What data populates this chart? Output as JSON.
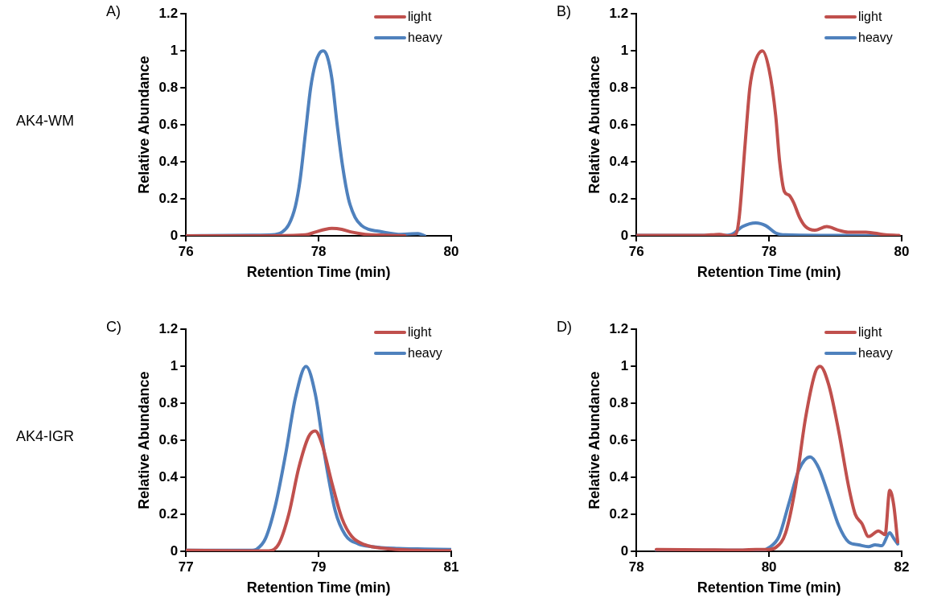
{
  "chart_data": [
    {
      "type": "line",
      "title": "A)",
      "annotations": [
        "AK4-WM"
      ],
      "xlabel": "Retention Time (min)",
      "ylabel": "Relative Abundance",
      "xlim": [
        76,
        80
      ],
      "xticks": [
        76,
        78,
        80
      ],
      "ylim": [
        0,
        1.2
      ],
      "yticks": [
        0,
        0.2,
        0.4,
        0.6,
        0.8,
        1,
        1.2
      ],
      "legend": "top right",
      "line_style": "solid",
      "marker": "none",
      "series": [
        {
          "name": "light",
          "color": "#c0504d",
          "x": [
            76,
            77.2,
            77.8,
            77.95,
            78.1,
            78.2,
            78.35,
            78.5,
            78.7,
            79,
            79.3
          ],
          "values": [
            0,
            0,
            0.005,
            0.02,
            0.035,
            0.04,
            0.035,
            0.02,
            0.008,
            0.003,
            0
          ]
        },
        {
          "name": "heavy",
          "color": "#4f81bd",
          "x": [
            76,
            77,
            77.3,
            77.45,
            77.55,
            77.65,
            77.72,
            77.8,
            77.88,
            77.95,
            78.02,
            78.07,
            78.13,
            78.2,
            78.28,
            78.36,
            78.45,
            78.55,
            78.65,
            78.75,
            78.9,
            79.05,
            79.2,
            79.35,
            79.5,
            79.6
          ],
          "values": [
            0,
            0.003,
            0.005,
            0.02,
            0.06,
            0.16,
            0.3,
            0.55,
            0.8,
            0.93,
            0.99,
            1,
            0.97,
            0.85,
            0.6,
            0.38,
            0.2,
            0.1,
            0.055,
            0.035,
            0.025,
            0.015,
            0.008,
            0.01,
            0.012,
            0
          ]
        }
      ]
    },
    {
      "type": "line",
      "title": "B)",
      "xlabel": "Retention Time (min)",
      "ylabel": "Relative Abundance",
      "xlim": [
        76,
        80
      ],
      "xticks": [
        76,
        78,
        80
      ],
      "ylim": [
        0,
        1.2
      ],
      "yticks": [
        0,
        0.2,
        0.4,
        0.6,
        0.8,
        1,
        1.2
      ],
      "legend": "top right",
      "line_style": "solid",
      "marker": "none",
      "series": [
        {
          "name": "light",
          "color": "#c0504d",
          "x": [
            76,
            77,
            77.25,
            77.4,
            77.5,
            77.55,
            77.64,
            77.71,
            77.78,
            77.9,
            78,
            78.1,
            78.16,
            78.23,
            78.3,
            78.37,
            78.46,
            78.55,
            78.69,
            78.87,
            79.05,
            79.19,
            79.46,
            79.73,
            79.96
          ],
          "values": [
            0.002,
            0.002,
            0.008,
            0,
            0.01,
            0.1,
            0.5,
            0.8,
            0.93,
            1,
            0.9,
            0.65,
            0.4,
            0.24,
            0.22,
            0.18,
            0.1,
            0.05,
            0.03,
            0.05,
            0.03,
            0.02,
            0.02,
            0.007,
            0.002
          ]
        },
        {
          "name": "heavy",
          "color": "#4f81bd",
          "x": [
            76,
            77.3,
            77.45,
            77.6,
            77.8,
            77.95,
            78.1,
            78.25,
            79,
            79.9
          ],
          "values": [
            0.002,
            0.002,
            0.01,
            0.05,
            0.07,
            0.055,
            0.015,
            0.005,
            0.002,
            0
          ]
        }
      ]
    },
    {
      "type": "line",
      "title": "C)",
      "annotations": [
        "AK4-IGR"
      ],
      "xlabel": "Retention Time (min)",
      "ylabel": "Relative Abundance",
      "xlim": [
        77,
        81
      ],
      "xticks": [
        77,
        79,
        81
      ],
      "ylim": [
        0,
        1.2
      ],
      "yticks": [
        0,
        0.2,
        0.4,
        0.6,
        0.8,
        1,
        1.2
      ],
      "legend": "top right",
      "line_style": "solid",
      "marker": "none",
      "series": [
        {
          "name": "light",
          "color": "#c0504d",
          "x": [
            77,
            78,
            78.25,
            78.4,
            78.55,
            78.7,
            78.85,
            78.95,
            79.05,
            79.2,
            79.35,
            79.5,
            79.7,
            80,
            80.5,
            81
          ],
          "values": [
            0.005,
            0.002,
            0.002,
            0.04,
            0.2,
            0.45,
            0.62,
            0.65,
            0.58,
            0.37,
            0.18,
            0.08,
            0.035,
            0.015,
            0.005,
            0.003
          ]
        },
        {
          "name": "heavy",
          "color": "#4f81bd",
          "x": [
            77,
            78,
            78.06,
            78.2,
            78.35,
            78.5,
            78.65,
            78.81,
            78.95,
            79.1,
            79.25,
            79.4,
            79.6,
            79.8,
            80.2,
            80.6,
            81
          ],
          "values": [
            0.005,
            0.005,
            0.01,
            0.07,
            0.25,
            0.52,
            0.83,
            1,
            0.85,
            0.5,
            0.22,
            0.09,
            0.04,
            0.025,
            0.015,
            0.012,
            0.01
          ]
        }
      ]
    },
    {
      "type": "line",
      "title": "D)",
      "xlabel": "Retention Time (min)",
      "ylabel": "Relative Abundance",
      "xlim": [
        78,
        82
      ],
      "xticks": [
        78,
        80,
        82
      ],
      "ylim": [
        0,
        1.2
      ],
      "yticks": [
        0,
        0.2,
        0.4,
        0.6,
        0.8,
        1,
        1.2
      ],
      "legend": "top right",
      "line_style": "solid",
      "marker": "none",
      "series": [
        {
          "name": "light",
          "color": "#c0504d",
          "x": [
            78.3,
            79,
            79.5,
            79.8,
            80,
            80.1,
            80.25,
            80.4,
            80.55,
            80.7,
            80.77,
            80.9,
            81.05,
            81.2,
            81.3,
            81.4,
            81.5,
            81.65,
            81.75,
            81.82,
            81.88,
            81.94
          ],
          "values": [
            0.01,
            0.008,
            0.006,
            0.01,
            0.01,
            0.02,
            0.1,
            0.35,
            0.72,
            0.97,
            1,
            0.9,
            0.65,
            0.35,
            0.2,
            0.15,
            0.08,
            0.11,
            0.09,
            0.33,
            0.25,
            0.05
          ]
        },
        {
          "name": "heavy",
          "color": "#4f81bd",
          "x": [
            78.3,
            79.9,
            80,
            80.15,
            80.3,
            80.45,
            80.62,
            80.75,
            80.9,
            81.05,
            81.2,
            81.35,
            81.5,
            81.6,
            81.7,
            81.82,
            81.88,
            81.94
          ],
          "values": [
            0.005,
            0.005,
            0.02,
            0.08,
            0.26,
            0.44,
            0.51,
            0.45,
            0.3,
            0.14,
            0.05,
            0.035,
            0.025,
            0.035,
            0.03,
            0.1,
            0.07,
            0.04
          ]
        }
      ]
    }
  ]
}
